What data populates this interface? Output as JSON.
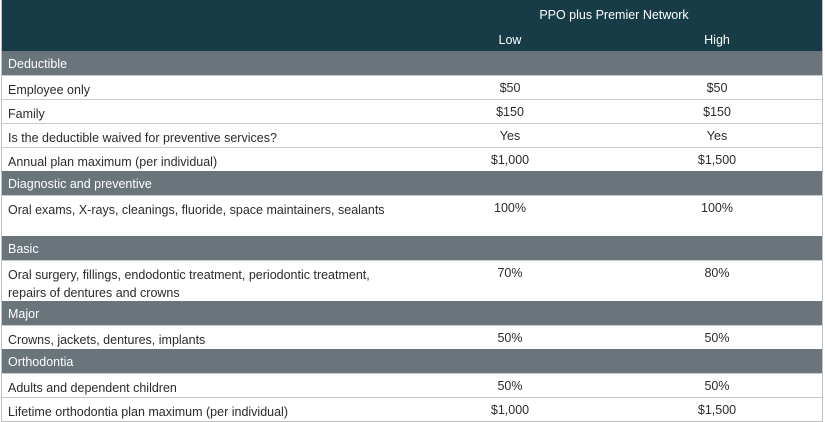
{
  "header": {
    "network": "PPO plus Premier Network",
    "low": "Low",
    "high": "High"
  },
  "sections": [
    {
      "title": "Deductible"
    },
    {
      "title": "Diagnostic and preventive"
    },
    {
      "title": "Basic"
    },
    {
      "title": "Major"
    },
    {
      "title": "Orthodontia"
    }
  ],
  "rows": {
    "employee_only": {
      "label": "Employee only",
      "low": "$50",
      "high": "$50"
    },
    "family": {
      "label": "Family",
      "low": "$150",
      "high": "$150"
    },
    "waived": {
      "label": "Is the deductible waived for preventive services?",
      "low": "Yes",
      "high": "Yes"
    },
    "annual_max": {
      "label": "Annual plan maximum (per individual)",
      "low": "$1,000",
      "high": "$1,500"
    },
    "oral_exams": {
      "label": "Oral exams, X-rays, cleanings, fluoride, space maintainers, sealants",
      "low": "100%",
      "high": "100%"
    },
    "oral_surgery": {
      "label": "Oral surgery, fillings, endodontic treatment, periodontic treatment, repairs of dentures and crowns",
      "low": "70%",
      "high": "80%"
    },
    "crowns": {
      "label": "Crowns, jackets, dentures, implants",
      "low": "50%",
      "high": "50%"
    },
    "adults": {
      "label": "Adults and dependent children",
      "low": "50%",
      "high": "50%"
    },
    "ortho_max": {
      "label": "Lifetime orthodontia plan maximum (per individual)",
      "low": "$1,000",
      "high": "$1,500"
    }
  }
}
